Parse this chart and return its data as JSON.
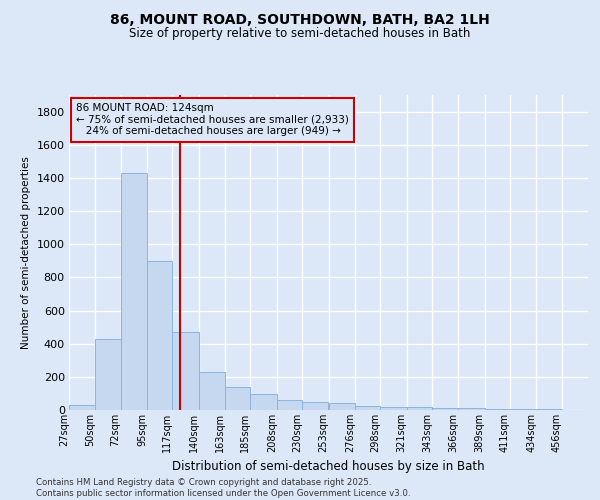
{
  "title_line1": "86, MOUNT ROAD, SOUTHDOWN, BATH, BA2 1LH",
  "title_line2": "Size of property relative to semi-detached houses in Bath",
  "xlabel": "Distribution of semi-detached houses by size in Bath",
  "ylabel": "Number of semi-detached properties",
  "bar_color": "#c5d8f0",
  "bar_edge_color": "#8ab4e0",
  "property_line_color": "#cc0000",
  "property_sqm": 124,
  "annotation_line1": "86 MOUNT ROAD: 124sqm",
  "annotation_line2": "← 75% of semi-detached houses are smaller (2,933)",
  "annotation_line3": "   24% of semi-detached houses are larger (949) →",
  "bg_color": "#dce8f8",
  "grid_color": "#ffffff",
  "footer": "Contains HM Land Registry data © Crown copyright and database right 2025.\nContains public sector information licensed under the Open Government Licence v3.0.",
  "bin_edges": [
    27,
    50,
    72,
    95,
    117,
    140,
    163,
    185,
    208,
    230,
    253,
    276,
    298,
    321,
    343,
    366,
    389,
    411,
    434,
    456,
    479
  ],
  "values": [
    30,
    430,
    1430,
    900,
    470,
    230,
    140,
    95,
    60,
    50,
    40,
    25,
    20,
    18,
    15,
    10,
    8,
    6,
    5,
    3
  ],
  "ylim": [
    0,
    1900
  ],
  "yticks": [
    0,
    200,
    400,
    600,
    800,
    1000,
    1200,
    1400,
    1600,
    1800
  ]
}
